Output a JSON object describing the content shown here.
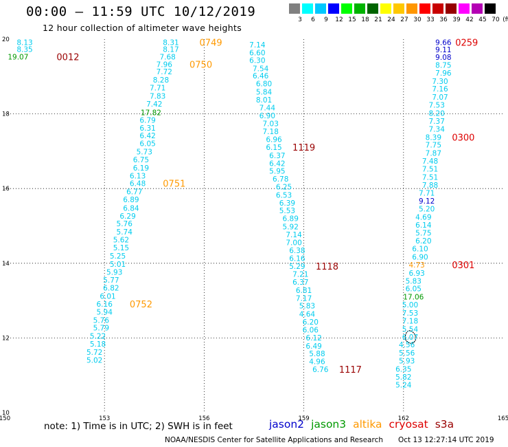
{
  "header": {
    "title": "00:00 – 11:59 UTC 10/12/2019",
    "subtitle": "12 hour collection of altimeter wave heights"
  },
  "scale": {
    "unit": "(ft)",
    "bins": [
      {
        "label": "3",
        "color": "#808080"
      },
      {
        "label": "6",
        "color": "#00ffff"
      },
      {
        "label": "9",
        "color": "#00c8ff"
      },
      {
        "label": "12",
        "color": "#0000ff"
      },
      {
        "label": "15",
        "color": "#00ff00"
      },
      {
        "label": "18",
        "color": "#00b400"
      },
      {
        "label": "21",
        "color": "#006400"
      },
      {
        "label": "24",
        "color": "#ffff00"
      },
      {
        "label": "27",
        "color": "#ffc800"
      },
      {
        "label": "30",
        "color": "#ff9600"
      },
      {
        "label": "33",
        "color": "#ff0000"
      },
      {
        "label": "36",
        "color": "#c80000"
      },
      {
        "label": "39",
        "color": "#960000"
      },
      {
        "label": "42",
        "color": "#ff00ff"
      },
      {
        "label": "45",
        "color": "#b400b4"
      },
      {
        "label": "70",
        "color": "#000000"
      }
    ]
  },
  "footer": {
    "note": "note: 1) Time is in UTC; 2) SWH is in feet",
    "satellites": [
      {
        "name": "jason2",
        "color": "#0000cc"
      },
      {
        "name": "jason3",
        "color": "#009900"
      },
      {
        "name": "altika",
        "color": "#ff9900"
      },
      {
        "name": "cryosat",
        "color": "#dd0000"
      },
      {
        "name": "s3a",
        "color": "#990000"
      }
    ],
    "credit": "NOAA/NESDIS Center for Satellite Applications and Research",
    "timestamp": "Oct 13 12:27:14 UTC 2019"
  },
  "chart_data": {
    "type": "scatter",
    "title": "00:00 – 11:59 UTC 10/12/2019",
    "subtitle": "12 hour collection of altimeter wave heights",
    "xlim": [
      150,
      165
    ],
    "ylim": [
      10,
      20
    ],
    "x_ticks": [
      "150",
      "153",
      "156",
      "159",
      "162",
      "165"
    ],
    "y_ticks": [
      "10",
      "12",
      "14",
      "16",
      "18",
      "20"
    ],
    "colors": {
      "c": "#00ccee",
      "g": "#009900",
      "b": "#0000cc",
      "o": "#ff9900",
      "r": "#dd0000",
      "m": "#990000"
    },
    "points": [
      {
        "x": 150.6,
        "y": 19.92,
        "t": "8.13",
        "c": "c"
      },
      {
        "x": 150.6,
        "y": 19.73,
        "t": "8.35",
        "c": "c"
      },
      {
        "x": 150.4,
        "y": 19.53,
        "t": "19.07",
        "c": "g"
      },
      {
        "x": 155.0,
        "y": 19.92,
        "t": "8.31",
        "c": "c"
      },
      {
        "x": 155.0,
        "y": 19.73,
        "t": "8.17",
        "c": "c"
      },
      {
        "x": 154.9,
        "y": 19.53,
        "t": "7.68",
        "c": "c"
      },
      {
        "x": 154.8,
        "y": 19.33,
        "t": "7.96",
        "c": "c"
      },
      {
        "x": 154.8,
        "y": 19.13,
        "t": "7.72",
        "c": "c"
      },
      {
        "x": 154.7,
        "y": 18.91,
        "t": "8.28",
        "c": "c"
      },
      {
        "x": 154.6,
        "y": 18.7,
        "t": "7.71",
        "c": "c"
      },
      {
        "x": 154.6,
        "y": 18.48,
        "t": "7.83",
        "c": "c"
      },
      {
        "x": 154.5,
        "y": 18.27,
        "t": "7.42",
        "c": "c"
      },
      {
        "x": 154.4,
        "y": 18.04,
        "t": "17.82",
        "c": "g"
      },
      {
        "x": 154.3,
        "y": 17.84,
        "t": "6.79",
        "c": "c"
      },
      {
        "x": 154.3,
        "y": 17.62,
        "t": "6.31",
        "c": "c"
      },
      {
        "x": 154.3,
        "y": 17.42,
        "t": "6.42",
        "c": "c"
      },
      {
        "x": 154.3,
        "y": 17.21,
        "t": "6.05",
        "c": "c"
      },
      {
        "x": 154.2,
        "y": 16.99,
        "t": "5.73",
        "c": "c"
      },
      {
        "x": 154.1,
        "y": 16.78,
        "t": "6.75",
        "c": "c"
      },
      {
        "x": 154.1,
        "y": 16.56,
        "t": "6.19",
        "c": "c"
      },
      {
        "x": 154.0,
        "y": 16.34,
        "t": "6.13",
        "c": "c"
      },
      {
        "x": 154.0,
        "y": 16.14,
        "t": "6.48",
        "c": "c"
      },
      {
        "x": 153.9,
        "y": 15.92,
        "t": "6.77",
        "c": "c"
      },
      {
        "x": 153.8,
        "y": 15.71,
        "t": "6.89",
        "c": "c"
      },
      {
        "x": 153.8,
        "y": 15.48,
        "t": "6.84",
        "c": "c"
      },
      {
        "x": 153.7,
        "y": 15.27,
        "t": "6.29",
        "c": "c"
      },
      {
        "x": 153.6,
        "y": 15.06,
        "t": "5.76",
        "c": "c"
      },
      {
        "x": 153.6,
        "y": 14.84,
        "t": "5.74",
        "c": "c"
      },
      {
        "x": 153.5,
        "y": 14.63,
        "t": "5.62",
        "c": "c"
      },
      {
        "x": 153.5,
        "y": 14.42,
        "t": "5.15",
        "c": "c"
      },
      {
        "x": 153.4,
        "y": 14.2,
        "t": "5.25",
        "c": "c"
      },
      {
        "x": 153.4,
        "y": 13.98,
        "t": "5.01",
        "c": "c"
      },
      {
        "x": 153.3,
        "y": 13.77,
        "t": "5.93",
        "c": "c"
      },
      {
        "x": 153.2,
        "y": 13.55,
        "t": "5.77",
        "c": "c"
      },
      {
        "x": 153.2,
        "y": 13.34,
        "t": "6.82",
        "c": "c"
      },
      {
        "x": 153.1,
        "y": 13.12,
        "t": "6.01",
        "c": "c"
      },
      {
        "x": 153.0,
        "y": 12.91,
        "t": "6.16",
        "c": "c"
      },
      {
        "x": 153.0,
        "y": 12.7,
        "t": "5.94",
        "c": "c"
      },
      {
        "x": 152.9,
        "y": 12.48,
        "t": "5.76",
        "c": "c"
      },
      {
        "x": 152.9,
        "y": 12.27,
        "t": "5.79",
        "c": "c"
      },
      {
        "x": 152.8,
        "y": 12.05,
        "t": "5.22",
        "c": "c"
      },
      {
        "x": 152.8,
        "y": 11.84,
        "t": "5.18",
        "c": "c"
      },
      {
        "x": 152.7,
        "y": 11.62,
        "t": "5.72",
        "c": "c"
      },
      {
        "x": 152.7,
        "y": 11.41,
        "t": "5.02",
        "c": "c"
      },
      {
        "x": 157.6,
        "y": 19.85,
        "t": "7.14",
        "c": "c"
      },
      {
        "x": 157.6,
        "y": 19.64,
        "t": "6.60",
        "c": "c"
      },
      {
        "x": 157.6,
        "y": 19.44,
        "t": "6.30",
        "c": "c"
      },
      {
        "x": 157.7,
        "y": 19.22,
        "t": "7.54",
        "c": "c"
      },
      {
        "x": 157.7,
        "y": 19.02,
        "t": "6.46",
        "c": "c"
      },
      {
        "x": 157.8,
        "y": 18.81,
        "t": "6.80",
        "c": "c"
      },
      {
        "x": 157.8,
        "y": 18.59,
        "t": "5.84",
        "c": "c"
      },
      {
        "x": 157.8,
        "y": 18.38,
        "t": "8.01",
        "c": "c"
      },
      {
        "x": 157.9,
        "y": 18.17,
        "t": "7.44",
        "c": "c"
      },
      {
        "x": 157.9,
        "y": 17.96,
        "t": "6.90",
        "c": "c"
      },
      {
        "x": 158.0,
        "y": 17.74,
        "t": "7.03",
        "c": "c"
      },
      {
        "x": 158.0,
        "y": 17.53,
        "t": "7.18",
        "c": "c"
      },
      {
        "x": 158.1,
        "y": 17.32,
        "t": "6.96",
        "c": "c"
      },
      {
        "x": 158.1,
        "y": 17.11,
        "t": "6.15",
        "c": "c"
      },
      {
        "x": 158.2,
        "y": 16.89,
        "t": "6.37",
        "c": "c"
      },
      {
        "x": 158.2,
        "y": 16.68,
        "t": "6.42",
        "c": "c"
      },
      {
        "x": 158.2,
        "y": 16.47,
        "t": "5.95",
        "c": "c"
      },
      {
        "x": 158.3,
        "y": 16.26,
        "t": "6.78",
        "c": "c"
      },
      {
        "x": 158.4,
        "y": 16.05,
        "t": "6.25",
        "c": "c"
      },
      {
        "x": 158.4,
        "y": 15.83,
        "t": "6.53",
        "c": "c"
      },
      {
        "x": 158.5,
        "y": 15.62,
        "t": "6.39",
        "c": "c"
      },
      {
        "x": 158.5,
        "y": 15.41,
        "t": "5.53",
        "c": "c"
      },
      {
        "x": 158.6,
        "y": 15.2,
        "t": "6.89",
        "c": "c"
      },
      {
        "x": 158.6,
        "y": 14.98,
        "t": "5.92",
        "c": "c"
      },
      {
        "x": 158.7,
        "y": 14.77,
        "t": "7.14",
        "c": "c"
      },
      {
        "x": 158.7,
        "y": 14.56,
        "t": "7.00",
        "c": "c"
      },
      {
        "x": 158.8,
        "y": 14.35,
        "t": "6.38",
        "c": "c"
      },
      {
        "x": 158.8,
        "y": 14.13,
        "t": "6.16",
        "c": "c"
      },
      {
        "x": 158.8,
        "y": 13.92,
        "t": "5.29",
        "c": "c"
      },
      {
        "x": 158.9,
        "y": 13.71,
        "t": "7.21",
        "c": "c"
      },
      {
        "x": 158.9,
        "y": 13.5,
        "t": "6.37",
        "c": "c"
      },
      {
        "x": 159.0,
        "y": 13.28,
        "t": "6.81",
        "c": "c"
      },
      {
        "x": 159.0,
        "y": 13.07,
        "t": "7.17",
        "c": "c"
      },
      {
        "x": 159.1,
        "y": 12.86,
        "t": "5.83",
        "c": "c"
      },
      {
        "x": 159.1,
        "y": 12.64,
        "t": "4.64",
        "c": "c"
      },
      {
        "x": 159.2,
        "y": 12.43,
        "t": "6.20",
        "c": "c"
      },
      {
        "x": 159.2,
        "y": 12.22,
        "t": "6.06",
        "c": "c"
      },
      {
        "x": 159.3,
        "y": 12.01,
        "t": "6.12",
        "c": "c"
      },
      {
        "x": 159.3,
        "y": 11.79,
        "t": "6.49",
        "c": "c"
      },
      {
        "x": 159.4,
        "y": 11.58,
        "t": "5.88",
        "c": "c"
      },
      {
        "x": 159.4,
        "y": 11.37,
        "t": "4.96",
        "c": "c"
      },
      {
        "x": 159.5,
        "y": 11.16,
        "t": "6.76",
        "c": "c"
      },
      {
        "x": 163.2,
        "y": 19.92,
        "t": "9.66",
        "c": "b"
      },
      {
        "x": 163.2,
        "y": 19.72,
        "t": "9.11",
        "c": "b"
      },
      {
        "x": 163.2,
        "y": 19.52,
        "t": "9.08",
        "c": "b"
      },
      {
        "x": 163.2,
        "y": 19.31,
        "t": "8.75",
        "c": "c"
      },
      {
        "x": 163.2,
        "y": 19.1,
        "t": "7.96",
        "c": "c"
      },
      {
        "x": 163.1,
        "y": 18.88,
        "t": "7.30",
        "c": "c"
      },
      {
        "x": 163.1,
        "y": 18.67,
        "t": "7.16",
        "c": "c"
      },
      {
        "x": 163.1,
        "y": 18.45,
        "t": "7.07",
        "c": "c"
      },
      {
        "x": 163.0,
        "y": 18.24,
        "t": "7.53",
        "c": "c"
      },
      {
        "x": 163.0,
        "y": 18.02,
        "t": "8.20",
        "c": "c"
      },
      {
        "x": 163.0,
        "y": 17.81,
        "t": "7.37",
        "c": "c"
      },
      {
        "x": 163.0,
        "y": 17.6,
        "t": "7.34",
        "c": "c"
      },
      {
        "x": 162.9,
        "y": 17.38,
        "t": "8.39",
        "c": "c"
      },
      {
        "x": 162.9,
        "y": 17.17,
        "t": "7.75",
        "c": "c"
      },
      {
        "x": 162.9,
        "y": 16.95,
        "t": "7.87",
        "c": "c"
      },
      {
        "x": 162.8,
        "y": 16.74,
        "t": "7.48",
        "c": "c"
      },
      {
        "x": 162.8,
        "y": 16.53,
        "t": "7.51",
        "c": "c"
      },
      {
        "x": 162.8,
        "y": 16.31,
        "t": "7.51",
        "c": "c"
      },
      {
        "x": 162.8,
        "y": 16.1,
        "t": "7.88",
        "c": "c"
      },
      {
        "x": 162.7,
        "y": 15.88,
        "t": "7.71",
        "c": "c"
      },
      {
        "x": 162.7,
        "y": 15.67,
        "t": "9.12",
        "c": "b"
      },
      {
        "x": 162.7,
        "y": 15.46,
        "t": "5.20",
        "c": "c"
      },
      {
        "x": 162.6,
        "y": 15.24,
        "t": "4.69",
        "c": "c"
      },
      {
        "x": 162.6,
        "y": 15.03,
        "t": "6.14",
        "c": "c"
      },
      {
        "x": 162.6,
        "y": 14.82,
        "t": "5.75",
        "c": "c"
      },
      {
        "x": 162.6,
        "y": 14.6,
        "t": "6.20",
        "c": "c"
      },
      {
        "x": 162.5,
        "y": 14.39,
        "t": "6.10",
        "c": "c"
      },
      {
        "x": 162.5,
        "y": 14.17,
        "t": "6.90",
        "c": "c"
      },
      {
        "x": 162.4,
        "y": 13.96,
        "t": "4.73",
        "c": "o"
      },
      {
        "x": 162.4,
        "y": 13.74,
        "t": "6.93",
        "c": "c"
      },
      {
        "x": 162.3,
        "y": 13.53,
        "t": "5.83",
        "c": "c"
      },
      {
        "x": 162.3,
        "y": 13.32,
        "t": "6.05",
        "c": "c"
      },
      {
        "x": 162.3,
        "y": 13.1,
        "t": "17.06",
        "c": "g"
      },
      {
        "x": 162.2,
        "y": 12.89,
        "t": "5.00",
        "c": "c"
      },
      {
        "x": 162.2,
        "y": 12.67,
        "t": "7.53",
        "c": "c"
      },
      {
        "x": 162.2,
        "y": 12.46,
        "t": "7.18",
        "c": "c"
      },
      {
        "x": 162.2,
        "y": 12.24,
        "t": "5.54",
        "c": "c"
      },
      {
        "x": 162.2,
        "y": 12.03,
        "t": "6.07",
        "c": "c"
      },
      {
        "x": 162.1,
        "y": 11.82,
        "t": "4.56",
        "c": "c"
      },
      {
        "x": 162.1,
        "y": 11.6,
        "t": "5.56",
        "c": "c"
      },
      {
        "x": 162.1,
        "y": 11.39,
        "t": "5.93",
        "c": "c"
      },
      {
        "x": 162.0,
        "y": 11.17,
        "t": "6.35",
        "c": "c"
      },
      {
        "x": 162.0,
        "y": 10.96,
        "t": "5.82",
        "c": "c"
      },
      {
        "x": 162.0,
        "y": 10.75,
        "t": "5.24",
        "c": "c"
      }
    ],
    "time_labels": [
      {
        "x": 151.9,
        "y": 19.53,
        "t": "0012",
        "c": "m"
      },
      {
        "x": 156.2,
        "y": 19.92,
        "t": "0749",
        "c": "o"
      },
      {
        "x": 155.9,
        "y": 19.33,
        "t": "0750",
        "c": "o"
      },
      {
        "x": 155.1,
        "y": 16.14,
        "t": "0751",
        "c": "o"
      },
      {
        "x": 154.1,
        "y": 12.91,
        "t": "0752",
        "c": "o"
      },
      {
        "x": 163.9,
        "y": 19.92,
        "t": "0259",
        "c": "r"
      },
      {
        "x": 163.8,
        "y": 17.38,
        "t": "0300",
        "c": "r"
      },
      {
        "x": 163.8,
        "y": 13.96,
        "t": "0301",
        "c": "r"
      },
      {
        "x": 159.0,
        "y": 17.11,
        "t": "1119",
        "c": "m"
      },
      {
        "x": 159.7,
        "y": 13.92,
        "t": "1118",
        "c": "m"
      },
      {
        "x": 160.4,
        "y": 11.16,
        "t": "1117",
        "c": "m"
      }
    ],
    "island": {
      "x": 162.2,
      "y": 12.01
    }
  }
}
